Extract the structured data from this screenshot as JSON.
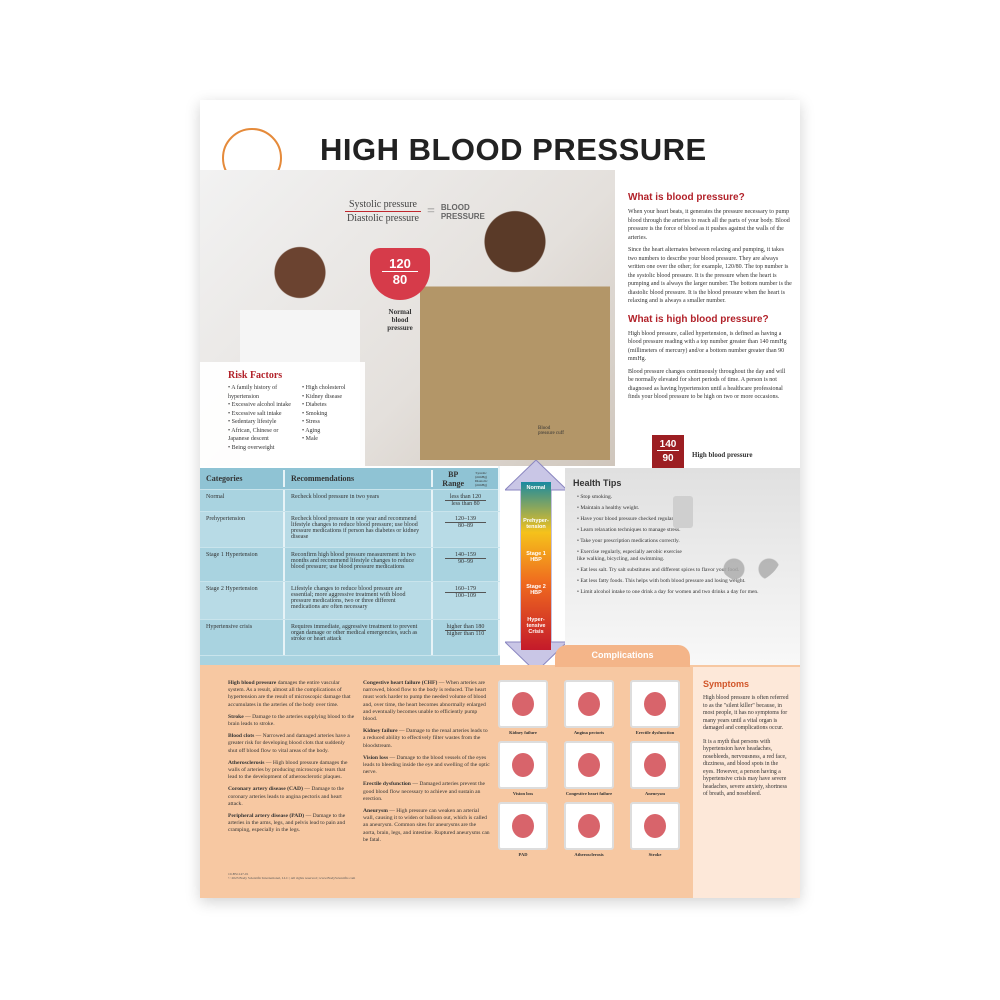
{
  "title": "HIGH BLOOD PRESSURE",
  "equation": {
    "top": "Systolic pressure",
    "bottom": "Diastolic pressure",
    "equals": "=",
    "result": "BLOOD PRESSURE"
  },
  "normal_bp": {
    "systolic": "120",
    "diastolic": "80",
    "label": "Normal blood pressure"
  },
  "cuff_label": "Blood pressure cuff",
  "risk_factors": {
    "title": "Risk Factors",
    "left": [
      "A family history of hypertension",
      "Excessive alcohol intake",
      "Excessive salt intake",
      "Sedentary lifestyle",
      "African, Chinese or Japanese descent",
      "Being overweight"
    ],
    "right": [
      "High cholesterol",
      "Kidney disease",
      "Diabetes",
      "Smoking",
      "Stress",
      "Aging",
      "Male"
    ]
  },
  "what_is_bp": {
    "title": "What is blood pressure?",
    "p1": "When your heart beats, it generates the pressure necessary to pump blood through the arteries to reach all the parts of your body. Blood pressure is the force of blood as it pushes against the walls of the arteries.",
    "p2": "Since the heart alternates between relaxing and pumping, it takes two numbers to describe your blood pressure. They are always written one over the other; for example, 120/80. The top number is the systolic blood pressure. It is the pressure when the heart is pumping and is always the larger number. The bottom number is the diastolic blood pressure. It is the blood pressure when the heart is relaxing and is always a smaller number."
  },
  "what_is_hbp": {
    "title": "What is high blood pressure?",
    "p1": "High blood pressure, called hypertension, is defined as having a blood pressure reading with a top number greater than 140 mmHg (millimeters of mercury) and/or a bottom number greater than 90 mmHg.",
    "p2": "Blood pressure changes continuously throughout the day and will be normally elevated for short periods of time. A person is not diagnosed as having hypertension until a healthcare professional finds your blood pressure to be high on two or more occasions."
  },
  "high_bp": {
    "systolic": "140",
    "diastolic": "90",
    "label": "High blood pressure"
  },
  "table": {
    "headers": [
      "Categories",
      "Recommendations",
      "BP Range"
    ],
    "bp_units": {
      "top": "Systolic (mmHg)",
      "bottom": "Diastolic (mmHg)"
    },
    "rows": [
      {
        "category": "Normal",
        "rec": "Recheck blood pressure in two years",
        "sys": "less than 120",
        "dia": "less than 80"
      },
      {
        "category": "Prehypertension",
        "rec": "Recheck blood pressure in one year and recommend lifestyle changes to reduce blood pressure; use blood pressure medications if person has diabetes or kidney disease",
        "sys": "120–139",
        "dia": "80–89"
      },
      {
        "category": "Stage 1 Hypertension",
        "rec": "Reconfirm high blood pressure measurement in two months and recommend lifestyle changes to reduce blood pressure; use blood pressure medications",
        "sys": "140–159",
        "dia": "90–99"
      },
      {
        "category": "Stage 2 Hypertension",
        "rec": "Lifestyle changes to reduce blood pressure are essential; more aggressive treatment with blood pressure medications, two or three different medications are often necessary",
        "sys": "160–179",
        "dia": "100–109"
      },
      {
        "category": "Hypertensive crisis",
        "rec": "Requires immediate, aggressive treatment to prevent organ damage or other medical emergencies, such as stroke or heart attack",
        "sys": "higher than 180",
        "dia": "higher than 110"
      }
    ]
  },
  "arrow_labels": [
    "Normal",
    "Prehyper-tension",
    "Stage 1 HBP",
    "Stage 2 HBP",
    "Hyper-tensive Crisis"
  ],
  "health_tips": {
    "title": "Health Tips",
    "items": [
      "Stop smoking.",
      "Maintain a healthy weight.",
      "Have your blood pressure checked regularly.",
      "Learn relaxation techniques to manage stress.",
      "Take your prescription medications correctly.",
      "Exercise regularly, especially aerobic exercise like walking, bicycling, and swimming.",
      "Eat less salt. Try salt substitutes and different spices to flavor your food.",
      "Eat less fatty foods. This helps with both blood pressure and losing weight.",
      "Limit alcohol intake to one drink a day for women and two drinks a day for men."
    ]
  },
  "complications": {
    "title": "Complications",
    "col1": [
      {
        "term": "High blood pressure",
        "text": " damages the entire vascular system. As a result, almost all the complications of hypertension are the result of microscopic damage that accumulates in the arteries of the body over time."
      },
      {
        "term": "Stroke",
        "text": " — Damage to the arteries supplying blood to the brain leads to stroke."
      },
      {
        "term": "Blood clots",
        "text": " — Narrowed and damaged arteries have a greater risk for developing blood clots that suddenly shut off blood flow to vital areas of the body."
      },
      {
        "term": "Atherosclerosis",
        "text": " — High blood pressure damages the walls of arteries by producing microscopic tears that lead to the development of atherosclerotic plaques."
      },
      {
        "term": "Coronary artery disease (CAD)",
        "text": " — Damage to the coronary arteries leads to angina pectoris and heart attack."
      },
      {
        "term": "Peripheral artery disease (PAD)",
        "text": " — Damage to the arteries in the arms, legs, and pelvis lead to pain and cramping, especially in the legs."
      }
    ],
    "col2": [
      {
        "term": "Congestive heart failure (CHF)",
        "text": " — When arteries are narrowed, blood flow to the body is reduced. The heart must work harder to pump the needed volume of blood and, over time, the heart becomes abnormally enlarged and eventually becomes unable to efficiently pump blood."
      },
      {
        "term": "Kidney failure",
        "text": " — Damage to the renal arteries leads to a reduced ability to effectively filter wastes from the bloodstream."
      },
      {
        "term": "Vision loss",
        "text": " — Damage to the blood vessels of the eyes leads to bleeding inside the eye and swelling of the optic nerve."
      },
      {
        "term": "Erectile dysfunction",
        "text": " — Damaged arteries prevent the good blood flow necessary to achieve and sustain an erection."
      },
      {
        "term": "Aneurysm",
        "text": " — High pressure can weaken an arterial wall, causing it to widen or balloon out, which is called an aneurysm. Common sites for aneurysms are the aorta, brain, legs, and intestine. Ruptured aneurysms can be fatal."
      }
    ],
    "images": [
      "Kidney failure",
      "Angina pectoris",
      "Erectile dysfunction",
      "Vision loss",
      "Congestive heart failure",
      "Aneurysm",
      "PAD",
      "Atherosclerosis",
      "Stroke"
    ]
  },
  "symptoms": {
    "title": "Symptoms",
    "p1": "High blood pressure is often referred to as the \"silent killer\" because, in most people, it has no symptoms for many years until a vital organ is damaged and complications occur.",
    "p2": "It is a myth that persons with hypertension have headaches, nosebleeds, nervousness, a red face, dizziness, and blood spots in the eyes. However, a person having a hypertensive crisis may have severe headaches, severe anxiety, shortness of breath, and nosebleed."
  },
  "footer": {
    "code": "10-BS1147-01",
    "copyright": "© 2023 Body Scientific International, LLC | All rights reserved | www.BodyScientific.com"
  },
  "colors": {
    "accent_red": "#b2222a",
    "table_blue": "#a9d3e0",
    "orange": "#f7c8a2"
  }
}
